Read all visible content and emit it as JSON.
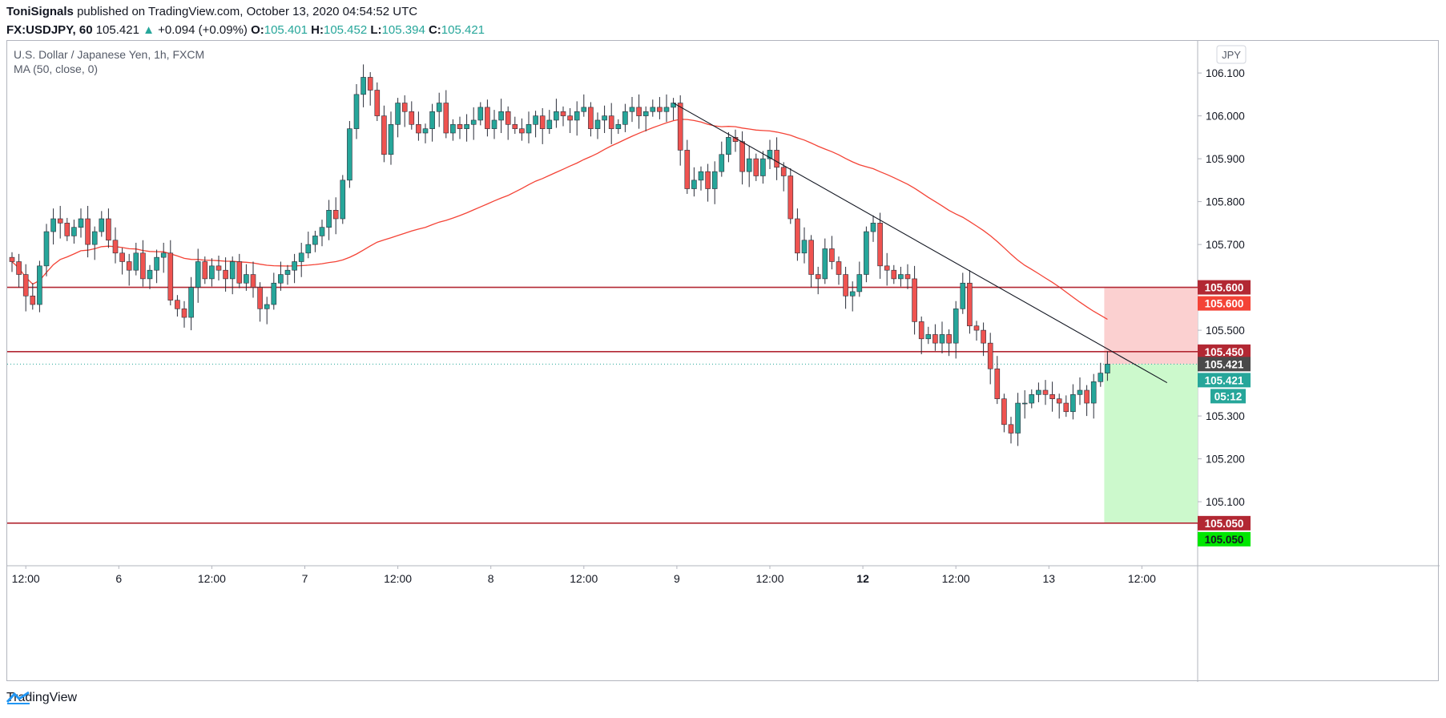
{
  "header": {
    "author": "ToniSignals",
    "published": "published on TradingView.com, October 13, 2020 04:54:52 UTC",
    "symbol": "FX:USDJPY, 60",
    "last": "105.421",
    "change_icon": "triangle-up-icon",
    "change": "+0.094 (+0.09%)",
    "o_label": "O:",
    "o": "105.401",
    "h_label": "H:",
    "h": "105.452",
    "l_label": "L:",
    "l": "105.394",
    "c_label": "C:",
    "c": "105.421"
  },
  "chart_data": {
    "type": "candlestick",
    "title": "U.S. Dollar / Japanese Yen, 1h, FXCM",
    "indicator": "MA (50, close, 0)",
    "currency_button": "JPY",
    "ylim": [
      104.96,
      106.16
    ],
    "y_ticks": [
      "106.100",
      "106.000",
      "105.900",
      "105.800",
      "105.700",
      "105.500",
      "105.300",
      "105.200",
      "105.100"
    ],
    "x_ticks": [
      {
        "label": "12:00",
        "i": 2,
        "bold": false
      },
      {
        "label": "6",
        "i": 15.5,
        "bold": false
      },
      {
        "label": "12:00",
        "i": 29,
        "bold": false
      },
      {
        "label": "7",
        "i": 42.5,
        "bold": false
      },
      {
        "label": "12:00",
        "i": 56,
        "bold": false
      },
      {
        "label": "8",
        "i": 69.5,
        "bold": false
      },
      {
        "label": "12:00",
        "i": 83,
        "bold": false
      },
      {
        "label": "9",
        "i": 96.5,
        "bold": false
      },
      {
        "label": "12:00",
        "i": 110,
        "bold": false
      },
      {
        "label": "12",
        "i": 123.5,
        "bold": true
      },
      {
        "label": "12:00",
        "i": 137,
        "bold": false
      },
      {
        "label": "13",
        "i": 150.5,
        "bold": false
      },
      {
        "label": "12:00",
        "i": 164,
        "bold": false
      }
    ],
    "close_path": [
      105.66,
      105.63,
      105.58,
      105.56,
      105.65,
      105.73,
      105.76,
      105.75,
      105.72,
      105.74,
      105.76,
      105.7,
      105.73,
      105.76,
      105.71,
      105.68,
      105.66,
      105.64,
      105.68,
      105.62,
      105.64,
      105.67,
      105.68,
      105.57,
      105.55,
      105.53,
      105.6,
      105.66,
      105.62,
      105.65,
      105.64,
      105.62,
      105.66,
      105.61,
      105.63,
      105.6,
      105.55,
      105.56,
      105.61,
      105.63,
      105.64,
      105.66,
      105.68,
      105.7,
      105.72,
      105.74,
      105.78,
      105.76,
      105.85,
      105.97,
      106.05,
      106.09,
      106.06,
      106.0,
      105.91,
      105.98,
      106.03,
      106.01,
      105.98,
      105.96,
      105.97,
      106.01,
      106.03,
      105.96,
      105.98,
      105.97,
      105.98,
      105.99,
      106.02,
      105.97,
      105.99,
      106.01,
      105.98,
      105.97,
      105.96,
      105.98,
      106.0,
      105.97,
      105.99,
      106.01,
      106.0,
      105.99,
      106.01,
      106.02,
      105.97,
      105.99,
      106.0,
      105.97,
      105.98,
      106.01,
      106.02,
      106.0,
      106.01,
      106.02,
      106.01,
      106.02,
      106.03,
      105.92,
      105.83,
      105.85,
      105.87,
      105.83,
      105.87,
      105.91,
      105.95,
      105.94,
      105.87,
      105.9,
      105.86,
      105.9,
      105.92,
      105.88,
      105.86,
      105.76,
      105.68,
      105.71,
      105.63,
      105.62,
      105.69,
      105.66,
      105.63,
      105.58,
      105.59,
      105.63,
      105.73,
      105.75,
      105.65,
      105.64,
      105.62,
      105.63,
      105.62,
      105.52,
      105.48,
      105.49,
      105.47,
      105.49,
      105.47,
      105.55,
      105.61,
      105.51,
      105.5,
      105.47,
      105.41,
      105.34,
      105.28,
      105.26,
      105.33,
      105.33,
      105.35,
      105.36,
      105.35,
      105.34,
      105.33,
      105.31,
      105.35,
      105.36,
      105.33,
      105.38,
      105.4,
      105.421
    ],
    "ma_label_value": "105.600",
    "levels": [
      {
        "value": 105.6,
        "label": "105.600",
        "color": "#b22833"
      },
      {
        "value": 105.45,
        "label": "105.450",
        "color": "#b22833"
      },
      {
        "value": 105.05,
        "label": "105.050",
        "color": "#b22833"
      }
    ],
    "last_price": {
      "value": 105.421,
      "label": "105.421",
      "countdown": "05:12"
    },
    "position": {
      "entry": 105.421,
      "stop": 105.6,
      "target": 105.05,
      "stop_label": "105.600",
      "target_label": "105.050"
    },
    "trendline": {
      "from": {
        "i": 96,
        "price": 106.03
      },
      "to": {
        "i": 163,
        "price": 105.42
      }
    },
    "colors": {
      "up": "#26a69a",
      "down": "#ef5350",
      "ma": "#f44336",
      "level": "#b22833",
      "stop_zone": "#fbd0d0",
      "target_zone": "#ccf9cc",
      "target_tag": "#00e600",
      "ma_tag": "#f44336",
      "last_tag": "#4a4a4a",
      "countdown_tag": "#26a69a"
    }
  },
  "footer": {
    "brand": "TradingView",
    "logo_icon": "tradingview-logo-icon"
  }
}
